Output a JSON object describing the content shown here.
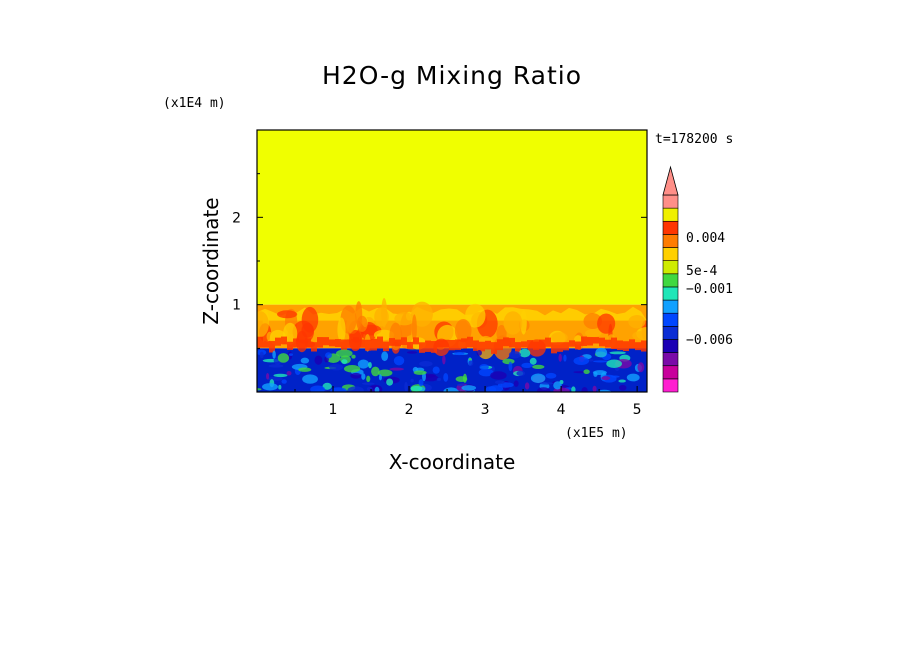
{
  "chart_data": {
    "type": "heatmap",
    "title": "H2O-g Mixing Ratio",
    "xlabel": "X-coordinate",
    "ylabel": "Z-coordinate",
    "x_unit": "(x1E5 m)",
    "y_unit": "(x1E4 m)",
    "time_label": "t=178200 s",
    "xlim": [
      0,
      5.13
    ],
    "ylim": [
      0,
      3.0
    ],
    "x_ticks": [
      "1",
      "2",
      "3",
      "4",
      "5"
    ],
    "y_ticks": [
      "1",
      "2"
    ],
    "x_tick_values": [
      1,
      2,
      3,
      4,
      5
    ],
    "y_tick_values": [
      1,
      2
    ],
    "regions": [
      {
        "name": "upper",
        "z_range": [
          1.0,
          3.0
        ],
        "value_level": "above 0.005",
        "color": "#f0ff00"
      },
      {
        "name": "transition",
        "z_range": [
          0.5,
          1.0
        ],
        "value_level": "0.0005 to 0.004",
        "color": "#ffa200"
      },
      {
        "name": "lower",
        "z_range": [
          0.0,
          0.5
        ],
        "value_level": "below -0.001",
        "color": "#0022c8"
      }
    ],
    "colorbar": {
      "colors": [
        "#ff1fd0",
        "#c8009c",
        "#7a0aa8",
        "#1b00b4",
        "#0a2cd4",
        "#0046ff",
        "#12a1ff",
        "#1fe6b8",
        "#40d840",
        "#cfeb00",
        "#ffd000",
        "#ff7c00",
        "#ff3600",
        "#f0f000",
        "#ff8f88"
      ],
      "extend": "max",
      "labels": [
        {
          "text": "0.004",
          "value": 0.004
        },
        {
          "text": "5e-4",
          "value": 0.0005
        },
        {
          "text": "−0.001",
          "value": -0.001
        },
        {
          "text": "−0.006",
          "value": -0.006
        }
      ]
    }
  }
}
